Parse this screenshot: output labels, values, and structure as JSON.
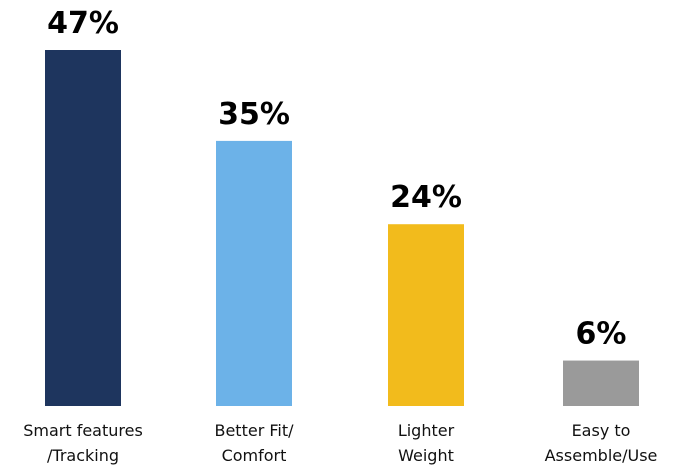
{
  "chart_data": {
    "type": "bar",
    "categories": [
      [
        "Smart features",
        "/Tracking"
      ],
      [
        "Better Fit/",
        "Comfort"
      ],
      [
        "Lighter",
        "Weight"
      ],
      [
        "Easy to",
        "Assemble/Use"
      ]
    ],
    "values": [
      47,
      35,
      24,
      6
    ],
    "value_labels": [
      "47%",
      "35%",
      "24%",
      "6%"
    ],
    "colors": [
      "#1e355e",
      "#6cb2e8",
      "#f2bb1c",
      "#9a9a9a"
    ],
    "title": "",
    "xlabel": "",
    "ylabel": "",
    "ylim": [
      0,
      47
    ],
    "grid": false,
    "legend": "none"
  }
}
